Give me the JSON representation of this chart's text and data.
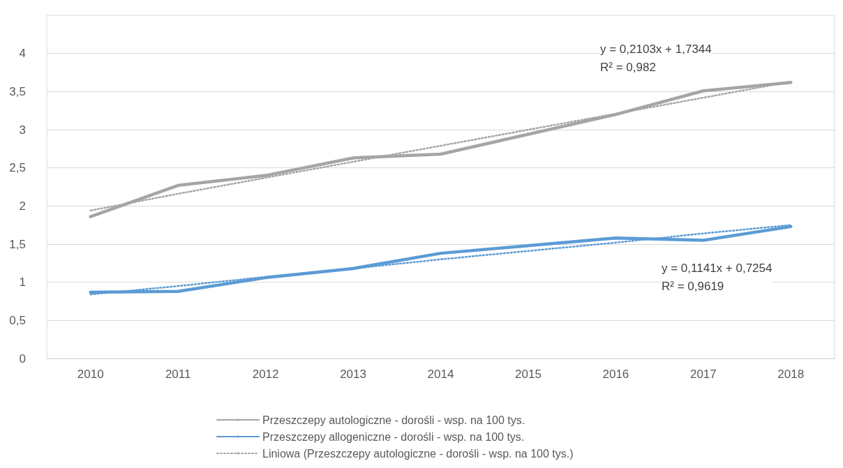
{
  "chart_data": {
    "type": "line",
    "categories": [
      "2010",
      "2011",
      "2012",
      "2013",
      "2014",
      "2015",
      "2016",
      "2017",
      "2018"
    ],
    "series": [
      {
        "name": "Przeszczepy autologiczne - dorośli - wsp. na 100 tys.",
        "color": "#a5a5a5",
        "line_style": "solid",
        "values": [
          1.86,
          2.27,
          2.4,
          2.63,
          2.68,
          2.94,
          3.2,
          3.51,
          3.62
        ]
      },
      {
        "name": "Przeszczepy allogeniczne - dorośli - wsp. na 100 tys.",
        "color": "#5b9bd5",
        "line_style": "solid",
        "values": [
          0.87,
          0.88,
          1.06,
          1.18,
          1.38,
          1.48,
          1.58,
          1.55,
          1.73
        ]
      },
      {
        "name": "Liniowa (Przeszczepy autologiczne - dorośli - wsp. na 100 tys.)",
        "type": "line",
        "color": "#a5a5a5",
        "line_style": "dotted",
        "values": [
          1.94,
          2.16,
          2.37,
          2.58,
          2.79,
          3.0,
          3.21,
          3.42,
          3.63
        ]
      },
      {
        "type": "line",
        "color": "#5b9bd5",
        "line_style": "dotted",
        "values": [
          0.84,
          0.95,
          1.07,
          1.18,
          1.3,
          1.41,
          1.52,
          1.64,
          1.75
        ]
      }
    ],
    "ylim": [
      0,
      4.5
    ],
    "yticks": [
      0,
      {
        "value": 0.5,
        "label": "0,5"
      },
      1,
      {
        "value": 1.5,
        "label": "1,5"
      },
      2,
      {
        "value": 2.5,
        "label": "2,5"
      },
      3,
      {
        "value": 3.5,
        "label": "3,5"
      },
      4
    ],
    "grid": "y",
    "legend": "bottom",
    "marker": "none",
    "annotations": [
      "y = 0,2103x + 1,7344\nR² = 0,982",
      "y = 0,1141x + 0,7254\nR² = 0,9619"
    ]
  }
}
